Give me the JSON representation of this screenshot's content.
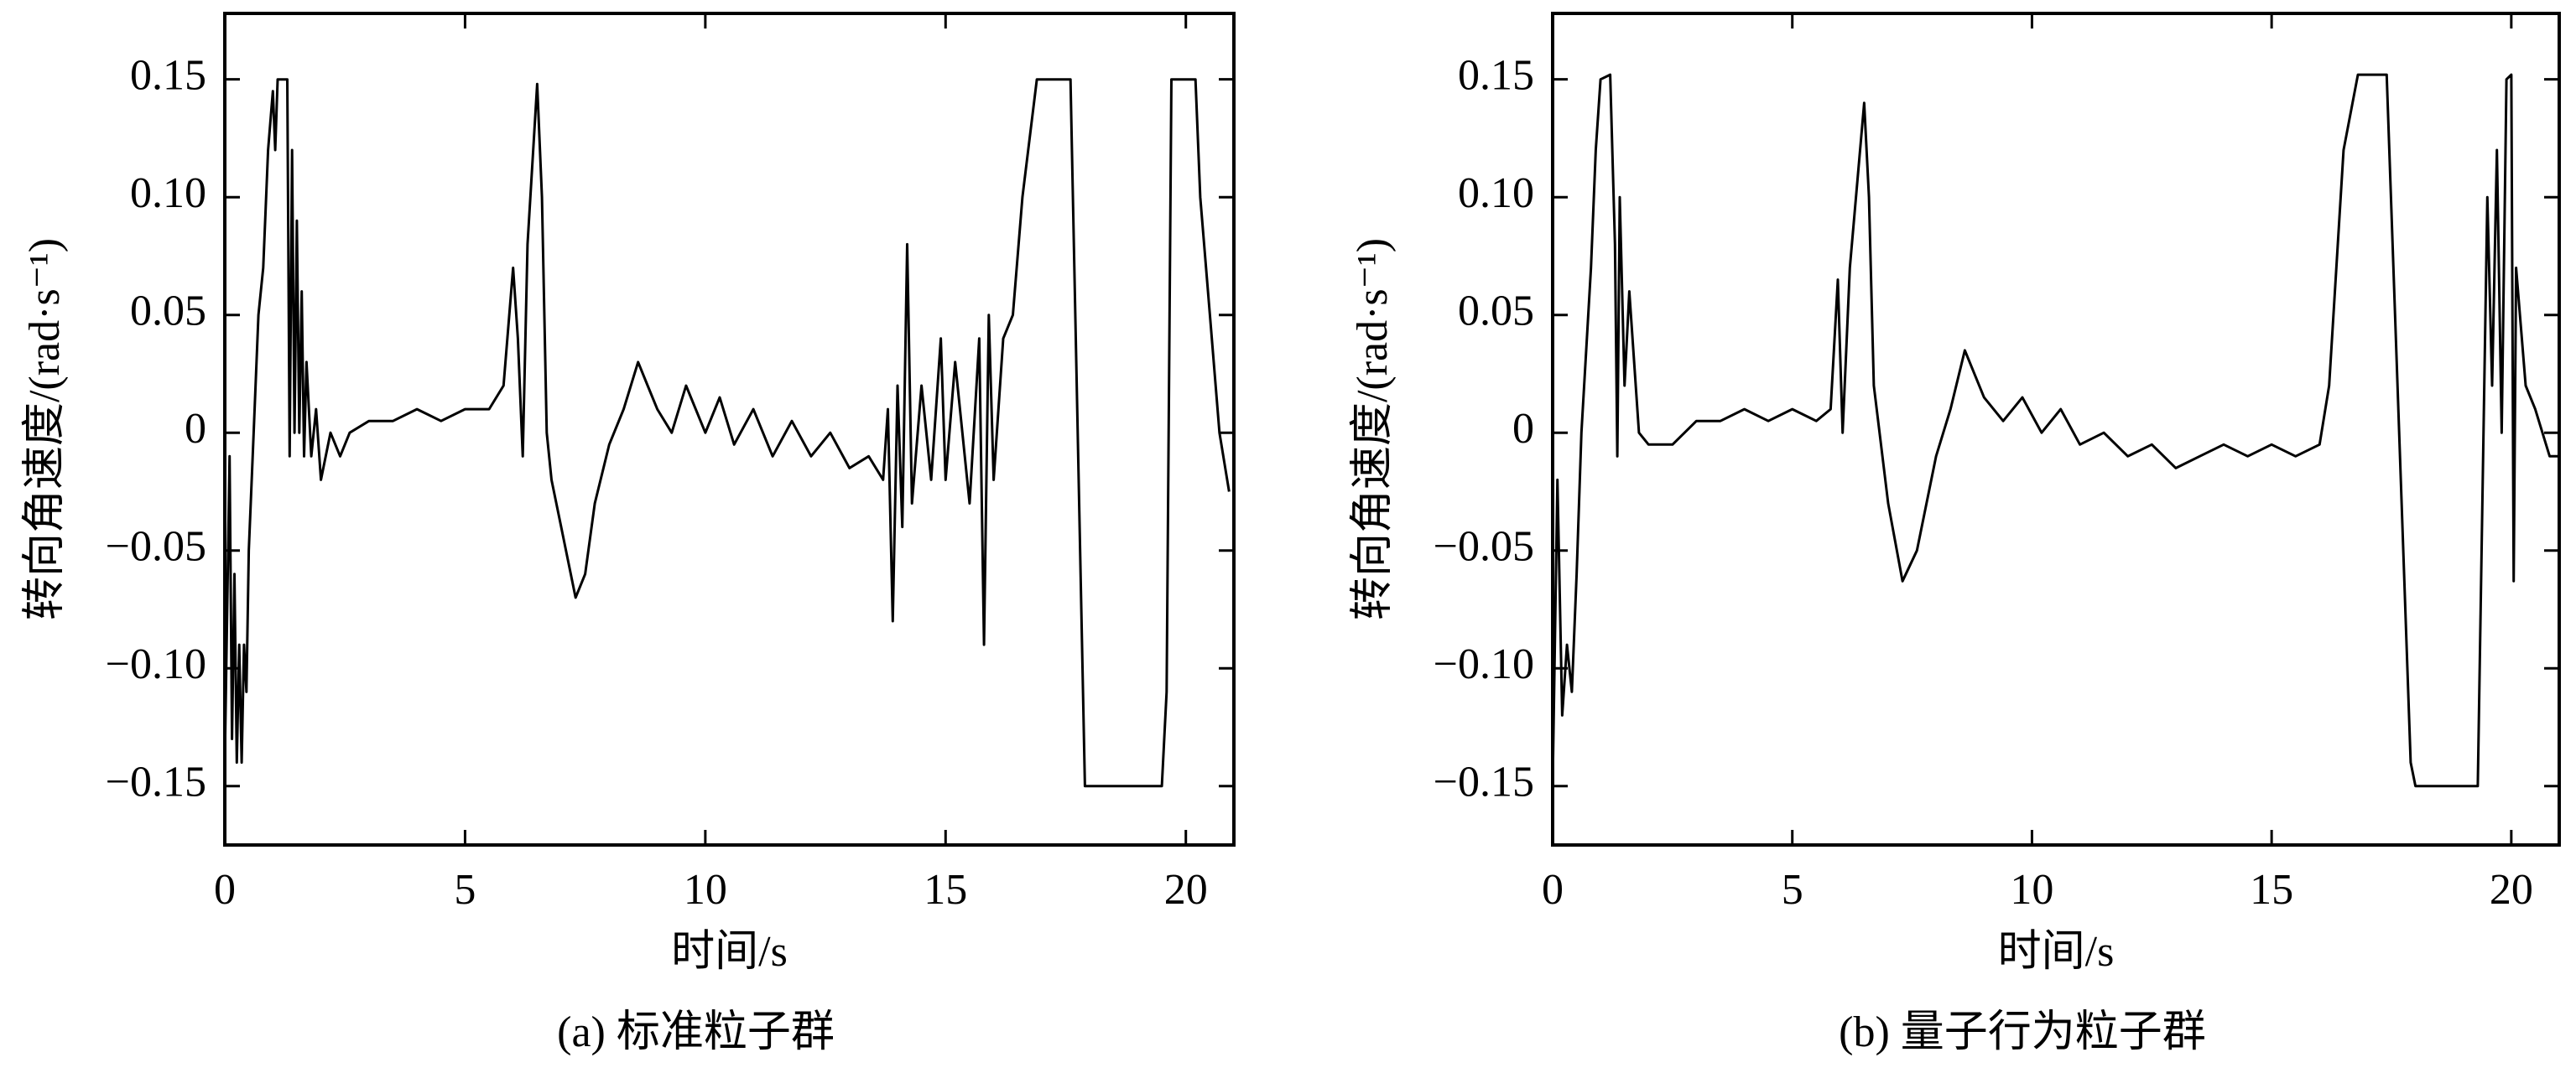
{
  "chart_data": [
    {
      "type": "line",
      "ylabel": "转向角速度/(rad·s⁻¹)",
      "xlabel": "时间/s",
      "caption": "(a) 标准粒子群",
      "color": "#000000",
      "xlim": [
        0,
        21
      ],
      "ylim": [
        -0.175,
        0.178
      ],
      "xticks": [
        0,
        5,
        10,
        15,
        20
      ],
      "yticks": [
        {
          "value": 0.15,
          "label": "0.15"
        },
        {
          "value": 0.1,
          "label": "0.10"
        },
        {
          "value": 0.05,
          "label": "0.05"
        },
        0,
        {
          "value": -0.05,
          "label": "−0.05"
        },
        {
          "value": -0.1,
          "label": "−0.10"
        },
        {
          "value": -0.15,
          "label": "−0.15"
        }
      ],
      "x": [
        0,
        0.1,
        0.15,
        0.2,
        0.25,
        0.3,
        0.35,
        0.4,
        0.45,
        0.5,
        0.6,
        0.7,
        0.8,
        0.9,
        1.0,
        1.05,
        1.1,
        1.3,
        1.35,
        1.4,
        1.45,
        1.5,
        1.55,
        1.6,
        1.65,
        1.7,
        1.8,
        1.9,
        2.0,
        2.2,
        2.4,
        2.6,
        3.0,
        3.5,
        4.0,
        4.5,
        5.0,
        5.5,
        5.8,
        6.0,
        6.1,
        6.2,
        6.3,
        6.5,
        6.6,
        6.7,
        6.8,
        7.0,
        7.3,
        7.5,
        7.7,
        8.0,
        8.3,
        8.6,
        8.8,
        9.0,
        9.3,
        9.6,
        10.0,
        10.3,
        10.6,
        11.0,
        11.4,
        11.8,
        12.2,
        12.6,
        13.0,
        13.4,
        13.7,
        13.8,
        13.9,
        14.0,
        14.1,
        14.2,
        14.3,
        14.5,
        14.7,
        14.9,
        15.0,
        15.2,
        15.5,
        15.7,
        15.8,
        15.9,
        16.0,
        16.2,
        16.4,
        16.6,
        16.9,
        17.6,
        17.9,
        19.5,
        19.6,
        19.7,
        20.2,
        20.3,
        20.5,
        20.7,
        20.9
      ],
      "values": [
        -0.14,
        -0.01,
        -0.13,
        -0.06,
        -0.14,
        -0.09,
        -0.14,
        -0.09,
        -0.11,
        -0.05,
        0.0,
        0.05,
        0.07,
        0.12,
        0.145,
        0.12,
        0.15,
        0.15,
        -0.01,
        0.12,
        0.0,
        0.09,
        0.0,
        0.06,
        -0.01,
        0.03,
        -0.01,
        0.01,
        -0.02,
        0.0,
        -0.01,
        0.0,
        0.005,
        0.005,
        0.01,
        0.005,
        0.01,
        0.01,
        0.02,
        0.07,
        0.04,
        -0.01,
        0.08,
        0.148,
        0.1,
        0.0,
        -0.02,
        -0.04,
        -0.07,
        -0.06,
        -0.03,
        -0.005,
        0.01,
        0.03,
        0.02,
        0.01,
        0.0,
        0.02,
        0.0,
        0.015,
        -0.005,
        0.01,
        -0.01,
        0.005,
        -0.01,
        0.0,
        -0.015,
        -0.01,
        -0.02,
        0.01,
        -0.08,
        0.02,
        -0.04,
        0.08,
        -0.03,
        0.02,
        -0.02,
        0.04,
        -0.02,
        0.03,
        -0.03,
        0.04,
        -0.09,
        0.05,
        -0.02,
        0.04,
        0.05,
        0.1,
        0.15,
        0.15,
        -0.15,
        -0.15,
        -0.11,
        0.15,
        0.15,
        0.1,
        0.05,
        0.0,
        -0.025
      ]
    },
    {
      "type": "line",
      "ylabel": "转向角速度/(rad·s⁻¹)",
      "xlabel": "时间/s",
      "caption": "(b) 量子行为粒子群",
      "color": "#000000",
      "xlim": [
        0,
        21
      ],
      "ylim": [
        -0.175,
        0.178
      ],
      "xticks": [
        0,
        5,
        10,
        15,
        20
      ],
      "yticks": [
        {
          "value": 0.15,
          "label": "0.15"
        },
        {
          "value": 0.1,
          "label": "0.10"
        },
        {
          "value": 0.05,
          "label": "0.05"
        },
        0,
        {
          "value": -0.05,
          "label": "−0.05"
        },
        {
          "value": -0.1,
          "label": "−0.10"
        },
        {
          "value": -0.15,
          "label": "−0.15"
        }
      ],
      "x": [
        0,
        0.1,
        0.2,
        0.3,
        0.4,
        0.5,
        0.6,
        0.8,
        0.9,
        1.0,
        1.2,
        1.3,
        1.35,
        1.4,
        1.5,
        1.6,
        1.8,
        2.0,
        2.5,
        3.0,
        3.5,
        4.0,
        4.5,
        5.0,
        5.5,
        5.8,
        5.95,
        6.05,
        6.2,
        6.5,
        6.6,
        6.7,
        7.0,
        7.3,
        7.6,
        8.0,
        8.3,
        8.6,
        9.0,
        9.4,
        9.8,
        10.2,
        10.6,
        11.0,
        11.5,
        12.0,
        12.5,
        13.0,
        13.5,
        14.0,
        14.5,
        15.0,
        15.5,
        16.0,
        16.2,
        16.5,
        16.8,
        17.4,
        17.9,
        18.0,
        19.3,
        19.5,
        19.6,
        19.7,
        19.8,
        19.9,
        20.0,
        20.05,
        20.1,
        20.3,
        20.5,
        20.8,
        21.0
      ],
      "values": [
        -0.15,
        -0.02,
        -0.12,
        -0.09,
        -0.11,
        -0.06,
        0.0,
        0.07,
        0.12,
        0.15,
        0.152,
        0.08,
        -0.01,
        0.1,
        0.02,
        0.06,
        0.0,
        -0.005,
        -0.005,
        0.005,
        0.005,
        0.01,
        0.005,
        0.01,
        0.005,
        0.01,
        0.065,
        0.0,
        0.07,
        0.14,
        0.1,
        0.02,
        -0.03,
        -0.063,
        -0.05,
        -0.01,
        0.01,
        0.035,
        0.015,
        0.005,
        0.015,
        0.0,
        0.01,
        -0.005,
        0.0,
        -0.01,
        -0.005,
        -0.015,
        -0.01,
        -0.005,
        -0.01,
        -0.005,
        -0.01,
        -0.005,
        0.02,
        0.12,
        0.152,
        0.152,
        -0.14,
        -0.15,
        -0.15,
        0.1,
        0.02,
        0.12,
        0.0,
        0.15,
        0.152,
        -0.063,
        0.07,
        0.02,
        0.01,
        -0.01,
        -0.01
      ]
    }
  ]
}
